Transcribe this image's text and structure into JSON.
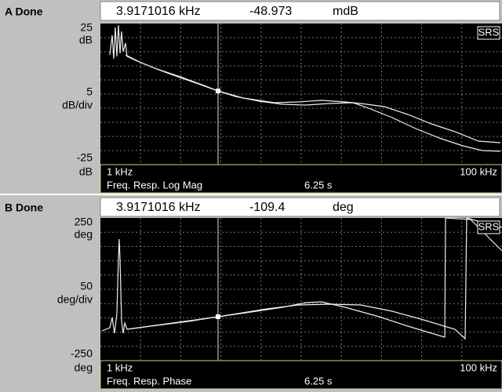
{
  "panels": [
    {
      "status": "A Done",
      "readout": {
        "x": "3.9171016 kHz",
        "y": "-48.973",
        "unit": "mdB"
      },
      "scale": {
        "top": "25",
        "top_unit": "dB",
        "div": "5",
        "div_unit": "dB/div",
        "bottom": "-25",
        "bottom_unit": "dB"
      },
      "x_start": "1 kHz",
      "x_end": "100 kHz",
      "measurement": "Freq. Resp. Log Mag",
      "time": "6.25 s",
      "logo": "SRS"
    },
    {
      "status": "B Done",
      "readout": {
        "x": "3.9171016 kHz",
        "y": "-109.4",
        "unit": "deg"
      },
      "scale": {
        "top": "250",
        "top_unit": "deg",
        "div": "50",
        "div_unit": "deg/div",
        "bottom": "-250",
        "bottom_unit": "deg"
      },
      "x_start": "1 kHz",
      "x_end": "100 kHz",
      "measurement": "Freq. Resp. Phase",
      "time": "6.25 s",
      "logo": "SRS"
    }
  ]
}
